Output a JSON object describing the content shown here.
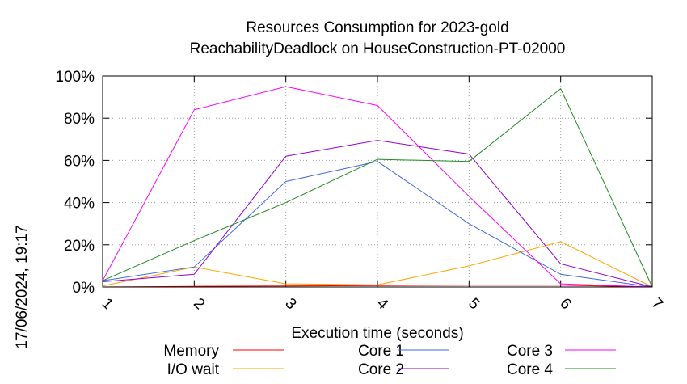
{
  "chart_data": {
    "type": "line",
    "title_line1": "Resources Consumption for 2023-gold",
    "title_line2": "ReachabilityDeadlock on HouseConstruction-PT-02000",
    "xlabel": "Execution time (seconds)",
    "ylabel": "",
    "side_label": "17/06/2024, 19:17",
    "xlim": [
      1,
      7
    ],
    "ylim": [
      0,
      100
    ],
    "x_ticks": [
      1,
      2,
      3,
      4,
      5,
      6,
      7
    ],
    "y_ticks": [
      {
        "value": 0,
        "label": "0%"
      },
      {
        "value": 20,
        "label": "20%"
      },
      {
        "value": 40,
        "label": "40%"
      },
      {
        "value": 60,
        "label": "60%"
      },
      {
        "value": 80,
        "label": "80%"
      },
      {
        "value": 100,
        "label": "100%"
      }
    ],
    "grid": true,
    "legend_position": "bottom",
    "series": [
      {
        "name": "Memory",
        "color": "#ff0000",
        "x": [
          1,
          2,
          3,
          4,
          5,
          6,
          7
        ],
        "y": [
          0,
          0.3,
          0.5,
          0.7,
          0.9,
          0.9,
          0
        ]
      },
      {
        "name": "I/O wait",
        "color": "#ffa500",
        "x": [
          1,
          2,
          3,
          4,
          5,
          6,
          7
        ],
        "y": [
          0.5,
          9.5,
          1.5,
          1,
          10,
          21.5,
          0
        ]
      },
      {
        "name": "Core 1",
        "color": "#4169e1",
        "x": [
          1,
          2,
          3,
          4,
          5,
          6,
          7
        ],
        "y": [
          3,
          9.5,
          50,
          59.5,
          30,
          6,
          0
        ]
      },
      {
        "name": "Core 2",
        "color": "#9400d3",
        "x": [
          1,
          2,
          3,
          4,
          5,
          6,
          7
        ],
        "y": [
          2.5,
          6,
          62,
          69.5,
          63,
          11,
          0
        ]
      },
      {
        "name": "Core 3",
        "color": "#ff00ff",
        "x": [
          1,
          2,
          3,
          4,
          5,
          6,
          7
        ],
        "y": [
          3,
          84,
          95,
          86,
          43,
          1.5,
          0
        ]
      },
      {
        "name": "Core 4",
        "color": "#228b22",
        "x": [
          1,
          2,
          3,
          4,
          5,
          6,
          7
        ],
        "y": [
          3,
          22,
          40,
          60.5,
          59.5,
          94,
          0
        ]
      }
    ]
  }
}
